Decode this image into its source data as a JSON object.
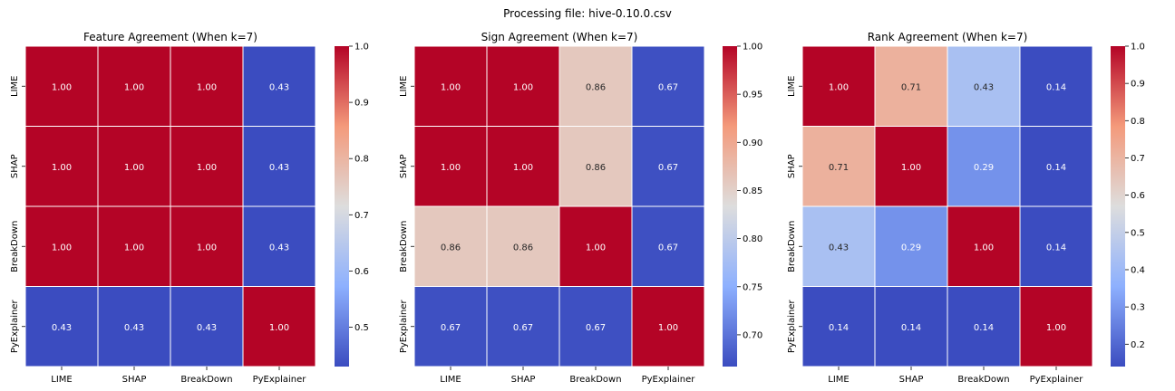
{
  "suptitle": "Processing file: hive-0.10.0.csv",
  "chart_data": [
    {
      "type": "heatmap",
      "title": "Feature Agreement (When k=7)",
      "x_labels": [
        "LIME",
        "SHAP",
        "BreakDown",
        "PyExplainer"
      ],
      "y_labels": [
        "LIME",
        "SHAP",
        "BreakDown",
        "PyExplainer"
      ],
      "values": [
        [
          1.0,
          1.0,
          1.0,
          0.43
        ],
        [
          1.0,
          1.0,
          1.0,
          0.43
        ],
        [
          1.0,
          1.0,
          1.0,
          0.43
        ],
        [
          0.43,
          0.43,
          0.43,
          1.0
        ]
      ],
      "vmin": 0.43,
      "vmax": 1.0,
      "colorbar_ticks": [
        0.5,
        0.6,
        0.7,
        0.8,
        0.9,
        1.0
      ],
      "colorbar_tick_labels": [
        "0.5",
        "0.6",
        "0.7",
        "0.8",
        "0.9",
        "1.0"
      ],
      "colormap": "coolwarm"
    },
    {
      "type": "heatmap",
      "title": "Sign Agreement (When k=7)",
      "x_labels": [
        "LIME",
        "SHAP",
        "BreakDown",
        "PyExplainer"
      ],
      "y_labels": [
        "LIME",
        "SHAP",
        "BreakDown",
        "PyExplainer"
      ],
      "values": [
        [
          1.0,
          1.0,
          0.86,
          0.67
        ],
        [
          1.0,
          1.0,
          0.86,
          0.67
        ],
        [
          0.86,
          0.86,
          1.0,
          0.67
        ],
        [
          0.67,
          0.67,
          0.67,
          1.0
        ]
      ],
      "vmin": 0.667,
      "vmax": 1.0,
      "colorbar_ticks": [
        0.7,
        0.75,
        0.8,
        0.85,
        0.9,
        0.95,
        1.0
      ],
      "colorbar_tick_labels": [
        "0.70",
        "0.75",
        "0.80",
        "0.85",
        "0.90",
        "0.95",
        "1.00"
      ],
      "colormap": "coolwarm"
    },
    {
      "type": "heatmap",
      "title": "Rank Agreement (When k=7)",
      "x_labels": [
        "LIME",
        "SHAP",
        "BreakDown",
        "PyExplainer"
      ],
      "y_labels": [
        "LIME",
        "SHAP",
        "BreakDown",
        "PyExplainer"
      ],
      "values": [
        [
          1.0,
          0.71,
          0.43,
          0.14
        ],
        [
          0.71,
          1.0,
          0.29,
          0.14
        ],
        [
          0.43,
          0.29,
          1.0,
          0.14
        ],
        [
          0.14,
          0.14,
          0.14,
          1.0
        ]
      ],
      "vmin": 0.14,
      "vmax": 1.0,
      "colorbar_ticks": [
        0.2,
        0.3,
        0.4,
        0.5,
        0.6,
        0.7,
        0.8,
        0.9,
        1.0
      ],
      "colorbar_tick_labels": [
        "0.2",
        "0.3",
        "0.4",
        "0.5",
        "0.6",
        "0.7",
        "0.8",
        "0.9",
        "1.0"
      ],
      "colormap": "coolwarm"
    }
  ]
}
